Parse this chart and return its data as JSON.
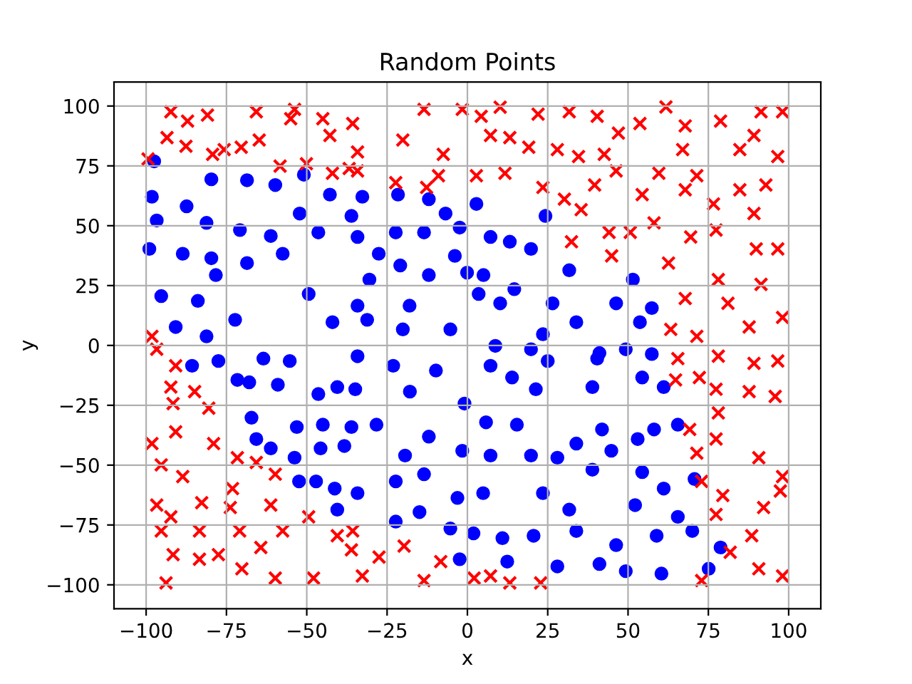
{
  "chart_data": {
    "type": "scatter",
    "title": "Random Points",
    "xlabel": "x",
    "ylabel": "y",
    "xlim": [
      -110,
      110
    ],
    "ylim": [
      -110,
      110
    ],
    "xticks": [
      -100,
      -75,
      -50,
      -25,
      0,
      25,
      50,
      75,
      100
    ],
    "yticks": [
      -100,
      -75,
      -50,
      -25,
      0,
      25,
      50,
      75,
      100
    ],
    "grid": true,
    "series": [
      {
        "color": "#0000ff",
        "marker": "circle",
        "x": [
          -97.5,
          -79.7,
          -68.6,
          -59.8,
          -50.9,
          -98.2,
          -87.4,
          -96.7,
          -81.2,
          -70.8,
          -61.2,
          -52.2,
          -46.4,
          -36.1,
          -99,
          -88.6,
          -79.7,
          -68.6,
          -57.5,
          -78.3,
          -95.3,
          -83.9,
          -72.3,
          -90.8,
          -81.2,
          -49.4,
          -42,
          -42.8,
          -32.7,
          -21.6,
          -12,
          -6.8,
          -2.4,
          2.8,
          7.2,
          13.2,
          19.8,
          24.3,
          -34.2,
          -27.6,
          -22.3,
          -13.5,
          -3.9,
          -20.9,
          -12,
          -0.1,
          5,
          10.2,
          14.6,
          26.5,
          31.7,
          -30.5,
          -34.2,
          -18,
          3.5,
          -31.2,
          -5.3,
          8.7,
          23.5,
          33.9,
          -20.1,
          51.5,
          46.3,
          57.4,
          53.7,
          41.1,
          -85.7,
          -77.5,
          -71.6,
          -63.5,
          -59,
          -55.3,
          -67.2,
          -65.7,
          -53.1,
          -45,
          -53.8,
          -45.7,
          -38.3,
          -52.4,
          -41.3,
          -40.5,
          -46.4,
          -40.5,
          -61.2,
          -47.1,
          -36.1,
          -67.9,
          -34.2,
          -23.1,
          -9.8,
          7.2,
          13.9,
          19.8,
          25,
          21.3,
          -34.9,
          -17.9,
          -0.9,
          5.8,
          15.4,
          -28.3,
          -12,
          -1.6,
          7.2,
          19.8,
          -19.4,
          -34.2,
          -22.3,
          -13.5,
          -3.1,
          4.9,
          23.5,
          -14.9,
          -22.3,
          -5.3,
          1.9,
          10.9,
          20.6,
          -2.4,
          12.4,
          28,
          33.9,
          31.7,
          33.9,
          28,
          40.4,
          49.3,
          57.4,
          54.4,
          61.1,
          38.9,
          41.9,
          53,
          58.1,
          65.5,
          44.8,
          38.9,
          54.4,
          61.1,
          70.7,
          52.2,
          65.5,
          70,
          78.8,
          58.9,
          46.3,
          41.1,
          49.3,
          60.4,
          75.1
        ],
        "values": [
          76.9,
          69.4,
          69,
          67,
          71.3,
          62.1,
          58.1,
          52.2,
          51.2,
          48.2,
          45.7,
          55.1,
          47.2,
          54.1,
          40.3,
          38.3,
          36.4,
          34.4,
          38.3,
          29.4,
          20.6,
          18.6,
          10.7,
          7.7,
          3.8,
          21.5,
          9.7,
          63,
          62.1,
          63,
          61.1,
          55.1,
          49.2,
          59.1,
          45.3,
          43.3,
          40.3,
          54.1,
          45.3,
          38.3,
          47.2,
          47.2,
          37.4,
          33.4,
          29.4,
          30.4,
          29.4,
          17.6,
          23.5,
          17.6,
          31.4,
          27.5,
          16.6,
          16.6,
          21.5,
          10.7,
          6.7,
          -0.2,
          4.7,
          9.7,
          6.7,
          27.5,
          17.6,
          15.6,
          9.7,
          -3.2,
          -8.5,
          -6.5,
          -14.4,
          -5.5,
          -16.4,
          -6.5,
          -30.2,
          -39.1,
          -34.1,
          -33.1,
          -46.9,
          -43,
          -42,
          -56.8,
          -59.8,
          -68.6,
          -20.3,
          -17.4,
          -43,
          -56.8,
          -34.1,
          -15.4,
          -4.5,
          -8.5,
          -10.5,
          -8.5,
          -13.4,
          -1.6,
          -6.5,
          -18.3,
          -18.3,
          -19.3,
          -24.3,
          -32.1,
          -33.1,
          -33.1,
          -38.1,
          -44,
          -46,
          -46,
          -46,
          -61.7,
          -56.8,
          -53.8,
          -63.7,
          -61.7,
          -61.7,
          -69.6,
          -73.6,
          -76.5,
          -78.5,
          -80.5,
          -79.5,
          -89.3,
          -90.3,
          -92.3,
          -41,
          -68.6,
          -77.5,
          -46.9,
          -5.5,
          -1.6,
          -3.6,
          -13.4,
          -17.4,
          -17.4,
          -35.1,
          -39.1,
          -35.1,
          -33.1,
          -44,
          -51.9,
          -52.9,
          -59.8,
          -55.8,
          -66.7,
          -71.6,
          -77.5,
          -84.4,
          -79.5,
          -83.4,
          -91.3,
          -94.3,
          -95.3,
          -93.3
        ]
      },
      {
        "color": "#ff0000",
        "marker": "cross",
        "x": [
          -92.3,
          -93.5,
          -87.1,
          -87.6,
          -80.9,
          -79.3,
          -70.4,
          -65.7,
          -64.8,
          -53.8,
          -55,
          -45,
          -42.8,
          -58.3,
          -50.1,
          -42,
          -36.8,
          -99.4,
          -98.2,
          -75.7,
          -35.7,
          -34.2,
          -34.2,
          -22.3,
          -20.1,
          -13.5,
          -7.5,
          -1.6,
          4.3,
          -9,
          -12.7,
          2.8,
          10.2,
          7.2,
          13.2,
          19.1,
          11.7,
          23.5,
          22,
          31.7,
          28,
          34.6,
          30.2,
          35.4,
          32.4,
          40.4,
          47,
          42.6,
          53.7,
          61.8,
          67.8,
          67,
          78.8,
          84.8,
          91.4,
          98.1,
          96.6,
          89.2,
          39.6,
          46.3,
          59.6,
          54.4,
          67.8,
          71.4,
          76.6,
          84.8,
          92.9,
          89.2,
          77.4,
          69.5,
          44.1,
          58.1,
          44.9,
          62.6,
          78.1,
          89.9,
          96.6,
          91.4,
          67.8,
          81.1,
          98.1,
          63.3,
          71.4,
          87.7,
          50.7,
          -96.7,
          -90.8,
          -92.3,
          -84.9,
          -80.5,
          -91.6,
          -98.2,
          -90.8,
          -79,
          -95.3,
          -88.6,
          -96.7,
          -92.3,
          -82.7,
          -73.1,
          -71.6,
          -65.7,
          -59.8,
          -73.8,
          -61.2,
          -95.3,
          -83.4,
          -70.9,
          -91.6,
          -83.4,
          -77.5,
          -70.2,
          -59.8,
          -64.3,
          -57.5,
          -49.4,
          -47.9,
          -40.5,
          -36.1,
          -93.8,
          -35.7,
          -32.7,
          -27.5,
          -19.7,
          -8.3,
          -13.5,
          2.1,
          7.2,
          13.2,
          22.8,
          65.5,
          78.1,
          89.2,
          96.6,
          72.2,
          77.4,
          87.7,
          95.8,
          69.2,
          78.1,
          77.4,
          71.4,
          90.7,
          72.9,
          98.1,
          79.5,
          77.4,
          92.2,
          88.5,
          81.8,
          90.7,
          98.1,
          72.9,
          64.8,
          97.4
        ],
        "values": [
          97.6,
          86.8,
          93.7,
          83.2,
          96.2,
          79.8,
          82.8,
          97.6,
          85.8,
          98.6,
          94.7,
          94.7,
          87.7,
          74.9,
          75.9,
          71.9,
          73.9,
          77.9,
          3.8,
          81.8,
          92.7,
          80.8,
          72.9,
          68,
          85.8,
          98.6,
          79.8,
          98.6,
          95.7,
          70.9,
          66,
          70.9,
          99.5,
          87.7,
          86.8,
          82.8,
          71.9,
          66,
          96.6,
          97.6,
          81.8,
          78.9,
          61.1,
          56.7,
          43.3,
          95.7,
          88.7,
          79.8,
          92.7,
          99.6,
          91.7,
          81.8,
          93.7,
          81.8,
          97.6,
          97.6,
          78.9,
          87.7,
          67,
          72.9,
          71.9,
          63,
          65,
          70.9,
          59.1,
          65,
          67,
          55.1,
          48.2,
          45.3,
          47.2,
          51.2,
          37.4,
          34.4,
          27.5,
          40.3,
          40.3,
          25.5,
          19.6,
          17.6,
          11.7,
          6.7,
          3.8,
          7.7,
          47.2,
          -1.6,
          -8.5,
          -17.4,
          -19.3,
          -26.2,
          -24.3,
          -41,
          -36.1,
          -41,
          -49.9,
          -54.8,
          -66.7,
          -71.6,
          -65.7,
          -59.8,
          -46.9,
          -48.9,
          -53.8,
          -67.7,
          -66.7,
          -77.5,
          -77.5,
          -77.5,
          -87.4,
          -89.3,
          -87.4,
          -93.3,
          -97.2,
          -84.4,
          -77.5,
          -71.6,
          -97.2,
          -79.5,
          -85.4,
          -99.2,
          -77.5,
          -96.3,
          -88.4,
          -83.8,
          -90.3,
          -98.2,
          -97.2,
          -96.3,
          -99.2,
          -99.2,
          -5.5,
          -4.5,
          -7.5,
          -6.5,
          -13.4,
          -18.3,
          -19.3,
          -21.3,
          -35.1,
          -28.2,
          -39.1,
          -45,
          -46.9,
          -56.8,
          -54.8,
          -62.7,
          -70.6,
          -67.7,
          -79.5,
          -86.4,
          -93.3,
          -96.3,
          -98.2,
          -14.4,
          -60.8
        ]
      }
    ]
  }
}
